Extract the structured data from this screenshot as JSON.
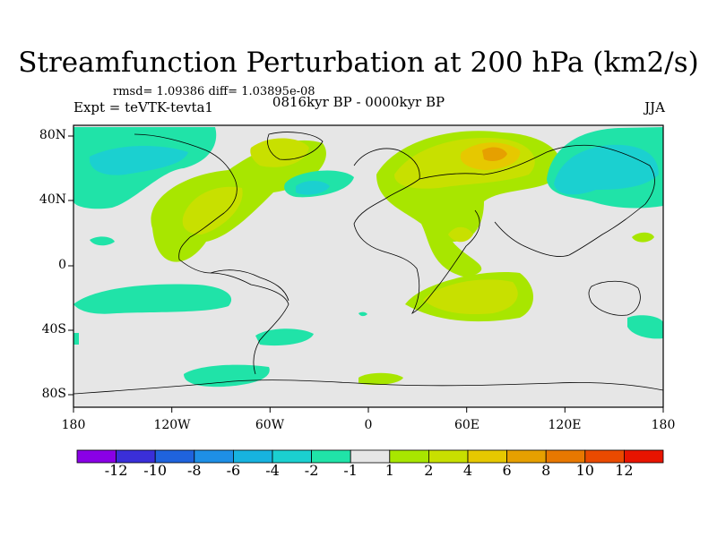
{
  "title": "Streamfunction Perturbation at 200 hPa (km2/s)",
  "stats": "rmsd= 1.09386 diff= 1.03895e-08",
  "experiment": "Expt = teVTK-tevta1",
  "period": "0816kyr BP - 0000kyr BP",
  "season": "JJA",
  "lat_labels": [
    "80N",
    "40N",
    "0",
    "40S",
    "80S"
  ],
  "lon_labels": [
    "180",
    "120W",
    "60W",
    "0",
    "60E",
    "120E",
    "180"
  ],
  "colorbar": {
    "labels": [
      "-12",
      "-10",
      "-8",
      "-6",
      "-4",
      "-2",
      "-1",
      "1",
      "2",
      "4",
      "6",
      "8",
      "10",
      "12"
    ],
    "colors": [
      "#8a00e6",
      "#3a2fd9",
      "#1f63dd",
      "#1e8fe6",
      "#17b3e0",
      "#1bd0d0",
      "#20e3a8",
      "#e6e6e6",
      "#a8e600",
      "#c8e000",
      "#e6c800",
      "#e6a000",
      "#e87800",
      "#ea4a00",
      "#e81400"
    ]
  }
}
